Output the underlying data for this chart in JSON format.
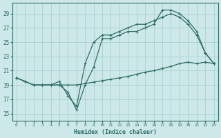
{
  "xlabel": "Humidex (Indice chaleur)",
  "bg_color": "#cde8e8",
  "line_color": "#2d6e65",
  "grid_color": "#aacfcf",
  "xlim": [
    -0.5,
    23.5
  ],
  "ylim": [
    14.0,
    30.5
  ],
  "yticks": [
    15,
    17,
    19,
    21,
    23,
    25,
    27,
    29
  ],
  "xticks": [
    0,
    1,
    2,
    3,
    4,
    5,
    6,
    7,
    8,
    9,
    10,
    11,
    12,
    13,
    14,
    15,
    16,
    17,
    18,
    19,
    20,
    21,
    22,
    23
  ],
  "line1_x": [
    0,
    1,
    2,
    3,
    4,
    5,
    6,
    7,
    8,
    9,
    10,
    11,
    12,
    13,
    14,
    15,
    16,
    17,
    18,
    19,
    20,
    21,
    22,
    23
  ],
  "line1_y": [
    20.0,
    19.5,
    19.0,
    19.0,
    19.0,
    19.0,
    18.0,
    15.5,
    19.0,
    21.5,
    25.5,
    25.5,
    26.0,
    26.5,
    26.5,
    27.0,
    27.5,
    29.5,
    29.5,
    29.0,
    28.0,
    26.5,
    23.5,
    22.0
  ],
  "line2_x": [
    0,
    1,
    2,
    3,
    4,
    5,
    6,
    7,
    8,
    9,
    10,
    11,
    12,
    13,
    14,
    15,
    16,
    17,
    18,
    19,
    20,
    21,
    22,
    23
  ],
  "line2_y": [
    20.0,
    19.5,
    19.0,
    19.0,
    19.0,
    19.5,
    17.5,
    16.0,
    22.0,
    25.0,
    26.0,
    26.0,
    26.5,
    27.0,
    27.5,
    27.5,
    28.0,
    28.5,
    29.0,
    28.5,
    27.5,
    26.0,
    23.5,
    22.0
  ],
  "line3_x": [
    0,
    1,
    2,
    3,
    4,
    5,
    6,
    7,
    8,
    9,
    10,
    11,
    12,
    13,
    14,
    15,
    16,
    17,
    18,
    19,
    20,
    21,
    22,
    23
  ],
  "line3_y": [
    20.0,
    19.5,
    19.0,
    19.0,
    19.0,
    19.0,
    19.0,
    19.0,
    19.2,
    19.4,
    19.6,
    19.8,
    20.0,
    20.2,
    20.5,
    20.8,
    21.0,
    21.3,
    21.6,
    22.0,
    22.2,
    22.0,
    22.2,
    22.0
  ]
}
